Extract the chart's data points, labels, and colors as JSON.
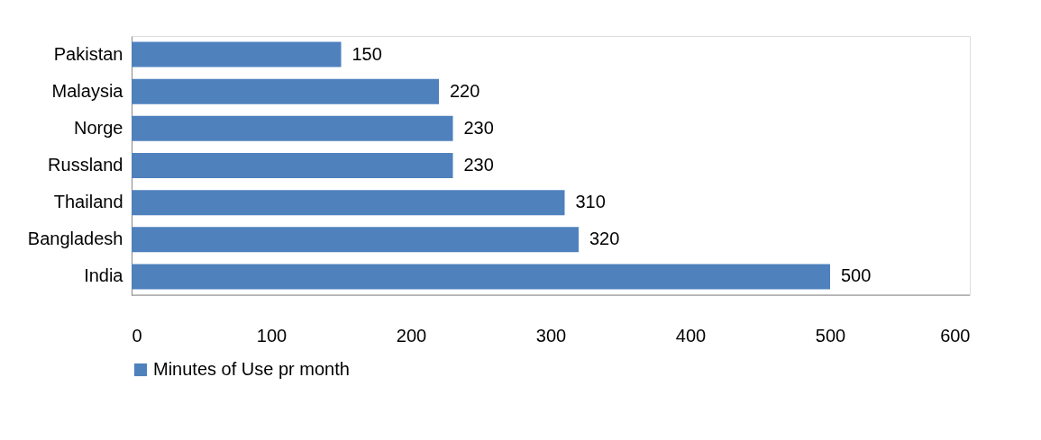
{
  "chart_data": {
    "type": "bar",
    "orientation": "horizontal",
    "categories": [
      "Pakistan",
      "Malaysia",
      "Norge",
      "Russland",
      "Thailand",
      "Bangladesh",
      "India"
    ],
    "series": [
      {
        "name": "Minutes of Use pr month",
        "color": "#4f81bd",
        "values": [
          150,
          220,
          230,
          230,
          310,
          320,
          500
        ]
      }
    ],
    "xlim": [
      0,
      600
    ],
    "xticks": [
      0,
      100,
      200,
      300,
      400,
      500,
      600
    ],
    "data_labels": true,
    "grid": false,
    "legend": "bottom"
  }
}
